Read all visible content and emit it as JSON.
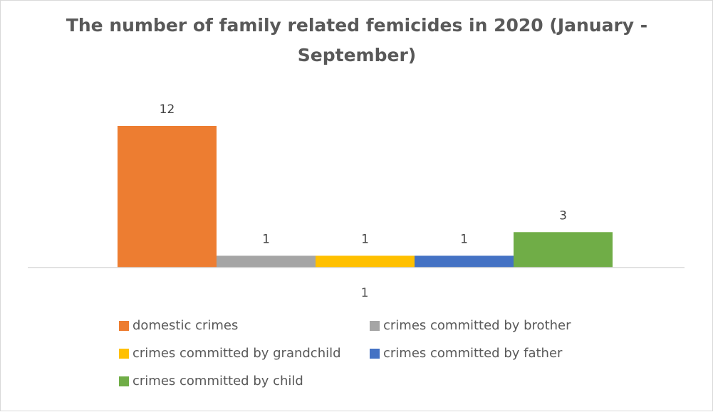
{
  "chart_data": {
    "type": "bar",
    "title": "The number of family related femicides in 2020 (January - September)",
    "categories": [
      "1"
    ],
    "series": [
      {
        "name": "domestic crimes",
        "values": [
          12
        ],
        "color": "#ED7D31"
      },
      {
        "name": "crimes committed by brother",
        "values": [
          1
        ],
        "color": "#A5A5A5"
      },
      {
        "name": "crimes committed by grandchild",
        "values": [
          1
        ],
        "color": "#FFC000"
      },
      {
        "name": "crimes committed by father",
        "values": [
          1
        ],
        "color": "#4472C4"
      },
      {
        "name": "crimes committed by child",
        "values": [
          3
        ],
        "color": "#70AD47"
      }
    ],
    "xlabel": "",
    "ylabel": "",
    "ylim": [
      0,
      12
    ],
    "grid": false,
    "legend": "bottom"
  }
}
